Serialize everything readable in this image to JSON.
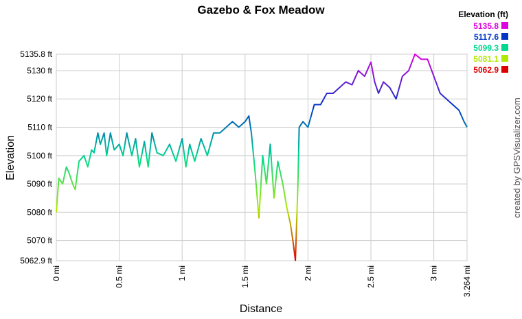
{
  "chart_data": {
    "type": "line",
    "title": "Gazebo & Fox Meadow",
    "x_label": "Distance",
    "y_label": "Elevation",
    "credit": "created by GPSVisualizer.com",
    "legend": {
      "title": "Elevation (ft)",
      "entries": [
        {
          "value": 5135.8,
          "color": "#e000e0"
        },
        {
          "value": 5117.6,
          "color": "#0036c8"
        },
        {
          "value": 5099.3,
          "color": "#00d890"
        },
        {
          "value": 5081.1,
          "color": "#b0ea00"
        },
        {
          "value": 5062.9,
          "color": "#dd0000"
        }
      ]
    },
    "xlim": [
      0,
      3.264
    ],
    "ylim": [
      5062.9,
      5135.8
    ],
    "xticks": [
      {
        "value": 0,
        "label": "0 mi"
      },
      {
        "value": 0.5,
        "label": "0.5 mi"
      },
      {
        "value": 1,
        "label": "1 mi"
      },
      {
        "value": 1.5,
        "label": "1.5 mi"
      },
      {
        "value": 2,
        "label": "2 mi"
      },
      {
        "value": 2.5,
        "label": "2.5 mi"
      },
      {
        "value": 3,
        "label": "3 mi"
      },
      {
        "value": 3.264,
        "label": "3.264 mi"
      }
    ],
    "yticks": [
      {
        "value": 5062.9,
        "label": "5062.9 ft"
      },
      {
        "value": 5070,
        "label": "5070 ft"
      },
      {
        "value": 5080,
        "label": "5080 ft"
      },
      {
        "value": 5090,
        "label": "5090 ft"
      },
      {
        "value": 5100,
        "label": "5100 ft"
      },
      {
        "value": 5110,
        "label": "5110 ft"
      },
      {
        "value": 5120,
        "label": "5120 ft"
      },
      {
        "value": 5130,
        "label": "5130 ft"
      },
      {
        "value": 5135.8,
        "label": "5135.8 ft"
      }
    ],
    "grid": true,
    "x": [
      0,
      0.02,
      0.05,
      0.08,
      0.1,
      0.13,
      0.15,
      0.18,
      0.22,
      0.25,
      0.28,
      0.3,
      0.33,
      0.35,
      0.38,
      0.4,
      0.43,
      0.46,
      0.5,
      0.53,
      0.56,
      0.6,
      0.63,
      0.66,
      0.7,
      0.73,
      0.76,
      0.8,
      0.85,
      0.9,
      0.95,
      1.0,
      1.03,
      1.06,
      1.1,
      1.15,
      1.2,
      1.25,
      1.3,
      1.35,
      1.4,
      1.45,
      1.5,
      1.53,
      1.55,
      1.58,
      1.61,
      1.64,
      1.67,
      1.7,
      1.73,
      1.76,
      1.8,
      1.83,
      1.86,
      1.88,
      1.9,
      1.92,
      1.93,
      1.96,
      2.0,
      2.05,
      2.1,
      2.15,
      2.2,
      2.25,
      2.3,
      2.35,
      2.4,
      2.45,
      2.5,
      2.53,
      2.56,
      2.6,
      2.65,
      2.7,
      2.75,
      2.8,
      2.85,
      2.9,
      2.95,
      3.0,
      3.05,
      3.1,
      3.15,
      3.2,
      3.24,
      3.264
    ],
    "values": [
      5080,
      5092,
      5090,
      5096,
      5094,
      5090,
      5088,
      5098,
      5100,
      5096,
      5102,
      5101,
      5108,
      5104,
      5108,
      5100,
      5108,
      5102,
      5104,
      5100,
      5108,
      5100,
      5106,
      5096,
      5105,
      5096,
      5108,
      5101,
      5100,
      5104,
      5098,
      5106,
      5096,
      5104,
      5098,
      5106,
      5100,
      5108,
      5108,
      5110,
      5112,
      5110,
      5112,
      5114,
      5108,
      5094,
      5078,
      5100,
      5090,
      5104,
      5085,
      5098,
      5090,
      5082,
      5076,
      5070,
      5063,
      5090,
      5110,
      5112,
      5110,
      5118,
      5118,
      5122,
      5122,
      5124,
      5126,
      5125,
      5130,
      5128,
      5133,
      5126,
      5122,
      5126,
      5124,
      5120,
      5128,
      5130,
      5135.8,
      5134,
      5134,
      5128,
      5122,
      5120,
      5118,
      5116,
      5112,
      5110
    ]
  }
}
